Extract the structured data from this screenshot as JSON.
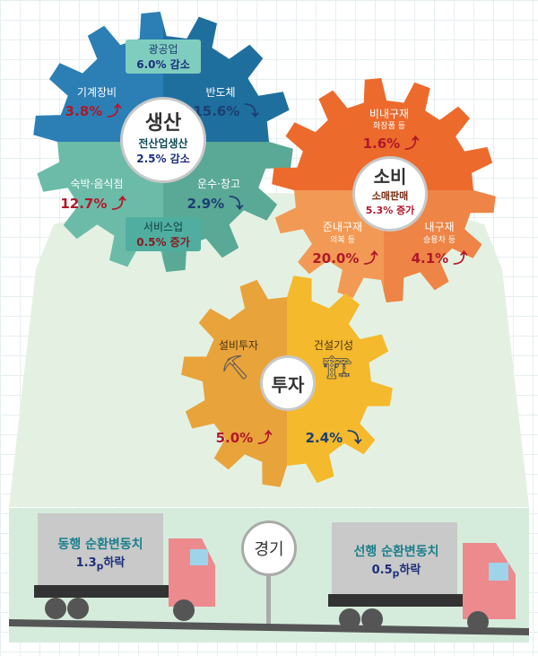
{
  "production": {
    "title": "생산",
    "overall_label": "전산업생산",
    "overall_value": "2.5% 감소",
    "mining": {
      "label": "광공업",
      "value": "6.0% 감소"
    },
    "services": {
      "label": "서비스업",
      "value": "0.5% 증가"
    },
    "items": [
      {
        "label": "기계장비",
        "value": "3.8%",
        "direction": "up"
      },
      {
        "label": "반도체",
        "value": "15.6%",
        "direction": "down"
      },
      {
        "label": "숙박·음식점",
        "value": "12.7%",
        "direction": "up"
      },
      {
        "label": "운수·창고",
        "value": "2.9%",
        "direction": "down"
      }
    ]
  },
  "consumption": {
    "title": "소비",
    "overall_label": "소매판매",
    "overall_value": "5.3% 증가",
    "items": [
      {
        "label": "비내구재",
        "sub": "화장품 등",
        "value": "1.6%",
        "direction": "up"
      },
      {
        "label": "준내구재",
        "sub": "의복 등",
        "value": "20.0%",
        "direction": "up"
      },
      {
        "label": "내구재",
        "sub": "승용차 등",
        "value": "4.1%",
        "direction": "up"
      }
    ]
  },
  "investment": {
    "title": "투자",
    "items": [
      {
        "label": "설비투자",
        "value": "5.0%",
        "direction": "up"
      },
      {
        "label": "건설기성",
        "value": "2.4%",
        "direction": "down"
      }
    ]
  },
  "economy": {
    "sign": "경기",
    "coincident": {
      "label": "동행 순환변동치",
      "value": "1.3",
      "unit": "p",
      "change": "하락"
    },
    "leading": {
      "label": "선행 순환변동치",
      "value": "0.5",
      "unit": "p",
      "change": "하락"
    }
  },
  "colors": {
    "up": "#b0182a",
    "down": "#1c3f73",
    "prod_top": "#2b7fb5",
    "prod_bottom": "#6bbba8",
    "cons_top": "#ec6a2c",
    "cons_bottom": "#f29a55",
    "inv_left": "#e8a33a",
    "inv_right": "#f4b92c"
  }
}
